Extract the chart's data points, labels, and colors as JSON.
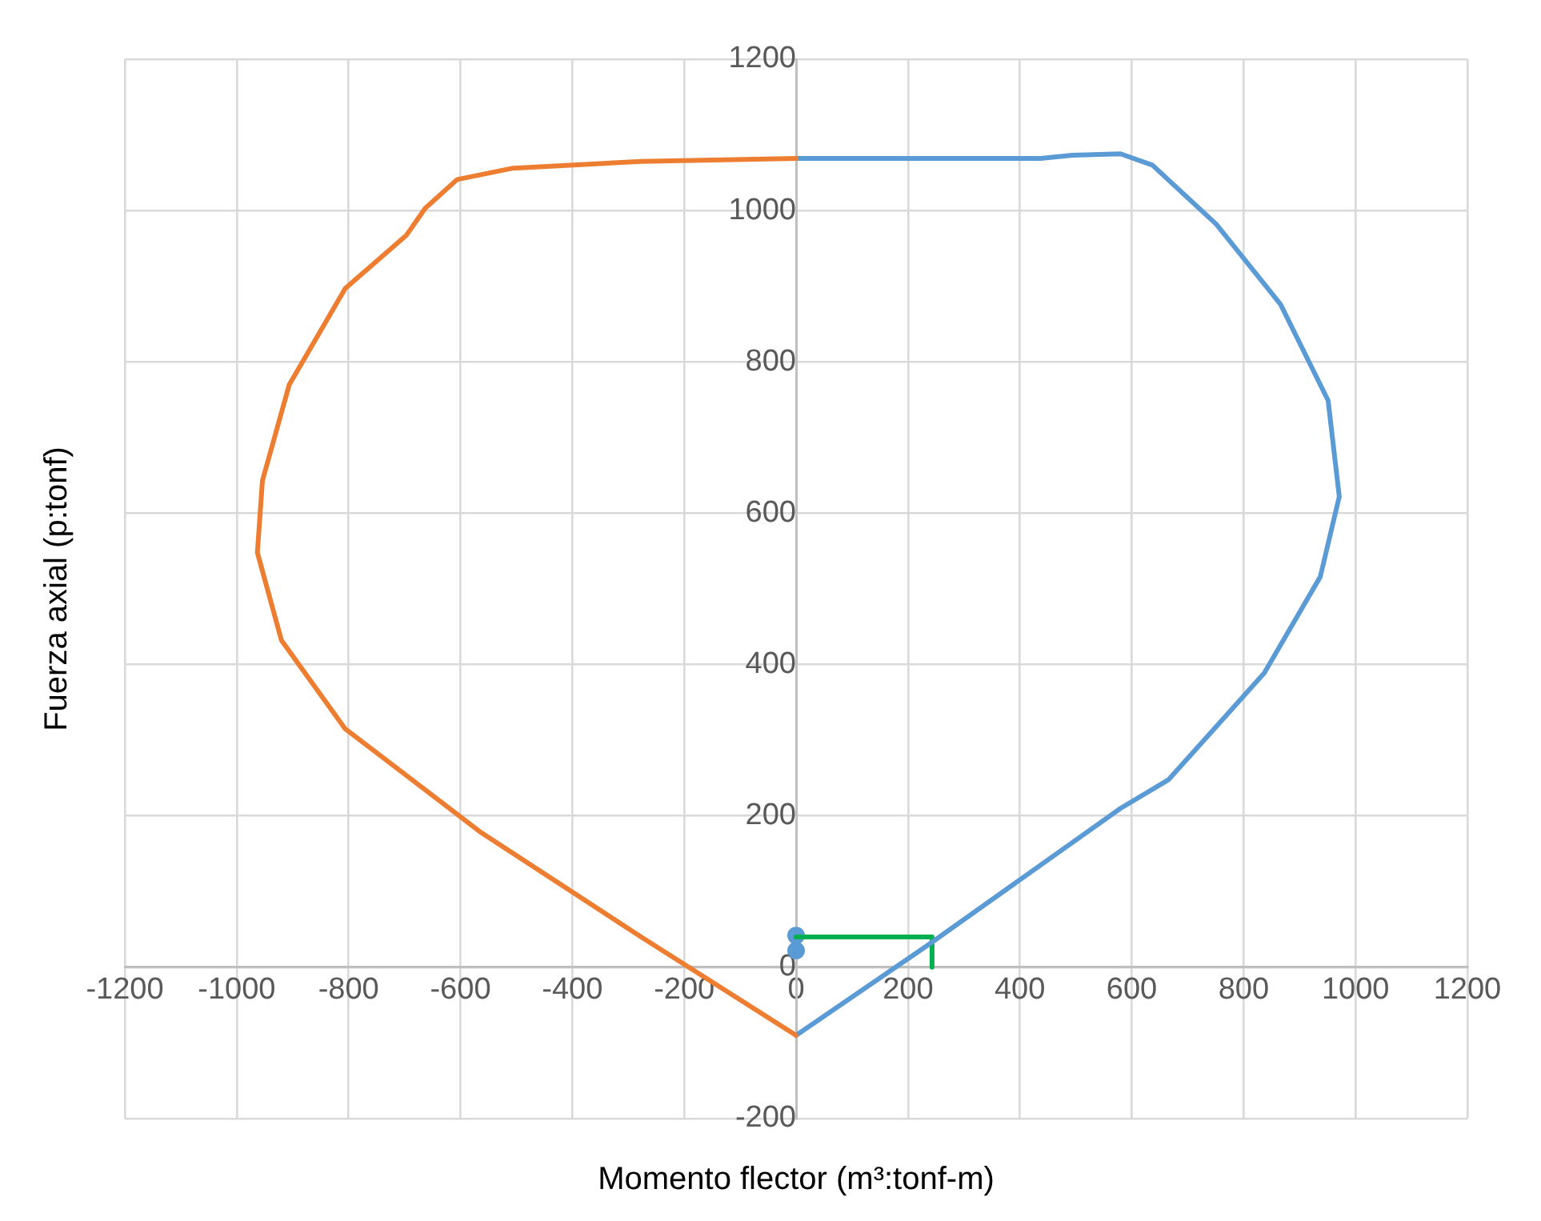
{
  "chart_data": {
    "type": "line",
    "xlabel": "Momento flector (m³:tonf-m)",
    "ylabel": "Fuerza axial (p:tonf)",
    "xlim": [
      -1200,
      1200
    ],
    "xticks": [
      -1200,
      -1000,
      -800,
      -600,
      -400,
      -200,
      0,
      200,
      400,
      600,
      800,
      1000,
      1200
    ],
    "ylim": [
      -200,
      1200
    ],
    "yticks": [
      -200,
      0,
      200,
      400,
      600,
      800,
      1000,
      1200
    ],
    "grid": true,
    "legend": false,
    "marker": "none",
    "line_style": "solid",
    "series": [
      {
        "color": "#ed7d31",
        "x": [
          0,
          -277,
          -563,
          -806,
          -920,
          -963,
          -954,
          -906,
          -806,
          -697,
          -663,
          -606,
          -506,
          -277,
          0
        ],
        "values": [
          -90,
          40,
          178,
          315,
          432,
          548,
          643,
          770,
          897,
          967,
          1003,
          1041,
          1056,
          1065,
          1069
        ]
      },
      {
        "color": "#5b9bd5",
        "x": [
          0,
          237,
          580,
          666,
          837,
          937,
          971,
          951,
          866,
          751,
          637,
          580,
          494,
          437,
          0
        ],
        "values": [
          -90,
          30,
          210,
          248,
          389,
          516,
          622,
          749,
          876,
          982,
          1060,
          1075,
          1073,
          1069,
          1069
        ]
      },
      {
        "color": "#00b050",
        "x": [
          0,
          243,
          243
        ],
        "values": [
          40,
          40,
          0
        ]
      },
      {
        "type": "scatter",
        "color": "#5b9bd5",
        "marker": "circle",
        "x": [
          0,
          0
        ],
        "values": [
          42,
          22
        ]
      }
    ]
  }
}
